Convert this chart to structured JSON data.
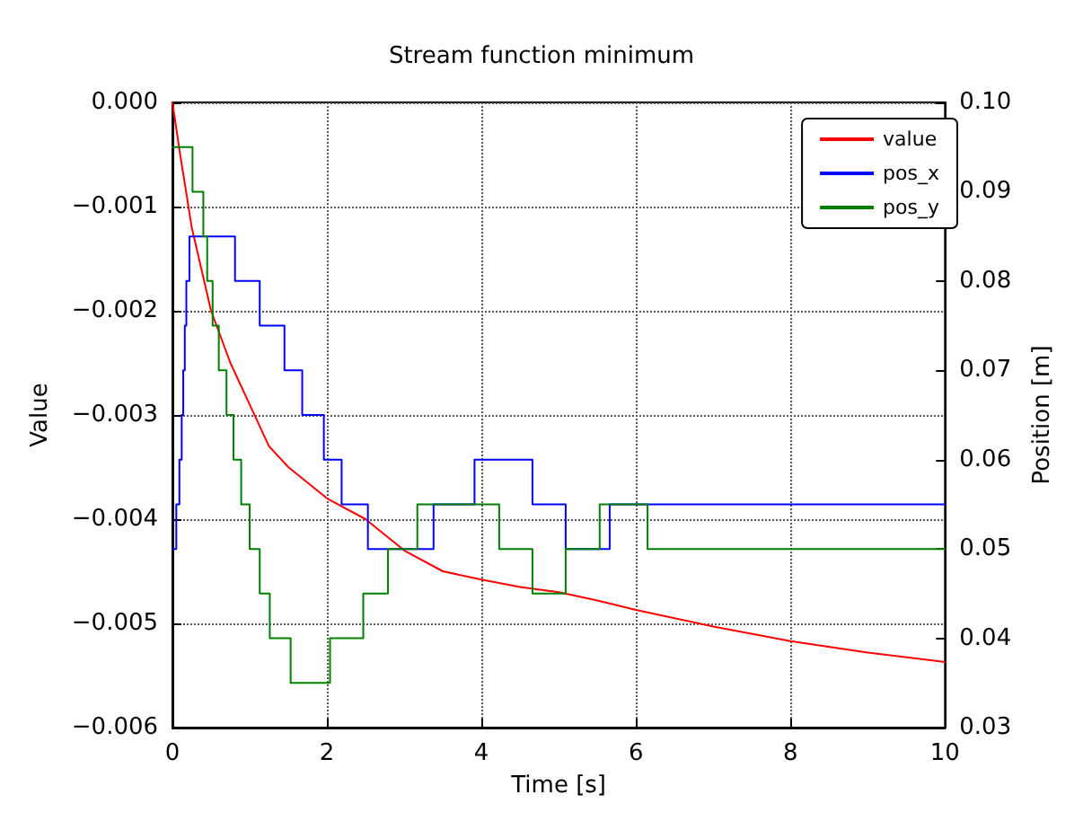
{
  "chart_data": {
    "type": "line",
    "title": "Stream function minimum",
    "xlabel": "Time [s]",
    "ylabel": "Value",
    "y2label": "Position [m]",
    "xlim": [
      0,
      10
    ],
    "xticks": [
      0,
      2,
      4,
      6,
      8,
      10
    ],
    "ylim": [
      -0.006,
      0
    ],
    "yticks": [
      {
        "value": -0.006,
        "label": "−0.006"
      },
      {
        "value": -0.005,
        "label": "−0.005"
      },
      {
        "value": -0.004,
        "label": "−0.004"
      },
      {
        "value": -0.003,
        "label": "−0.003"
      },
      {
        "value": -0.002,
        "label": "−0.002"
      },
      {
        "value": -0.001,
        "label": "−0.001"
      },
      {
        "value": 0,
        "label": "0.000"
      }
    ],
    "y2lim": [
      0.03,
      0.1
    ],
    "y2ticks": [
      {
        "value": 0.03,
        "label": "0.03"
      },
      {
        "value": 0.04,
        "label": "0.04"
      },
      {
        "value": 0.05,
        "label": "0.05"
      },
      {
        "value": 0.06,
        "label": "0.06"
      },
      {
        "value": 0.07,
        "label": "0.07"
      },
      {
        "value": 0.08,
        "label": "0.08"
      },
      {
        "value": 0.09,
        "label": "0.09"
      },
      {
        "value": 0.1,
        "label": "0.10"
      }
    ],
    "grid": true,
    "legend": "top right",
    "line_style": "solid",
    "marker": "none",
    "series": [
      {
        "name": "value",
        "color": "#ff0000",
        "x": [
          0,
          0.1,
          0.25,
          0.5,
          0.75,
          1,
          1.25,
          1.5,
          2,
          2.5,
          3,
          3.5,
          4,
          4.5,
          5,
          5.5,
          6,
          7,
          8,
          9,
          10
        ],
        "values": [
          0,
          -0.0005,
          -0.0012,
          -0.002,
          -0.0025,
          -0.0029,
          -0.0033,
          -0.0035,
          -0.0038,
          -0.004,
          -0.0043,
          -0.0045,
          -0.00458,
          -0.00465,
          -0.0047,
          -0.00478,
          -0.00487,
          -0.00503,
          -0.00517,
          -0.00528,
          -0.00537
        ]
      },
      {
        "name": "pos_x",
        "type": "step",
        "axis": "y2",
        "color": "#0000ff",
        "x": [
          0,
          0.05,
          0.09,
          0.12,
          0.14,
          0.16,
          0.18,
          0.22,
          0.81,
          1.13,
          1.45,
          1.68,
          1.96,
          2.19,
          2.53,
          3.38,
          3.91,
          4.66,
          5.09,
          5.66,
          10
        ],
        "values": [
          0.05,
          0.055,
          0.06,
          0.065,
          0.07,
          0.075,
          0.08,
          0.085,
          0.08,
          0.075,
          0.07,
          0.065,
          0.06,
          0.055,
          0.05,
          0.055,
          0.06,
          0.055,
          0.05,
          0.055,
          0.055
        ]
      },
      {
        "name": "pos_y",
        "type": "step",
        "axis": "y2",
        "color": "#008000",
        "x": [
          0,
          0.26,
          0.4,
          0.45,
          0.52,
          0.6,
          0.7,
          0.79,
          0.89,
          1,
          1.13,
          1.26,
          1.53,
          2.04,
          2.47,
          2.79,
          3.17,
          4.23,
          4.66,
          5.09,
          5.53,
          6.15,
          10
        ],
        "values": [
          0.095,
          0.09,
          0.085,
          0.08,
          0.075,
          0.07,
          0.065,
          0.06,
          0.055,
          0.05,
          0.045,
          0.04,
          0.035,
          0.04,
          0.045,
          0.05,
          0.055,
          0.05,
          0.045,
          0.05,
          0.055,
          0.05,
          0.05
        ]
      }
    ]
  }
}
